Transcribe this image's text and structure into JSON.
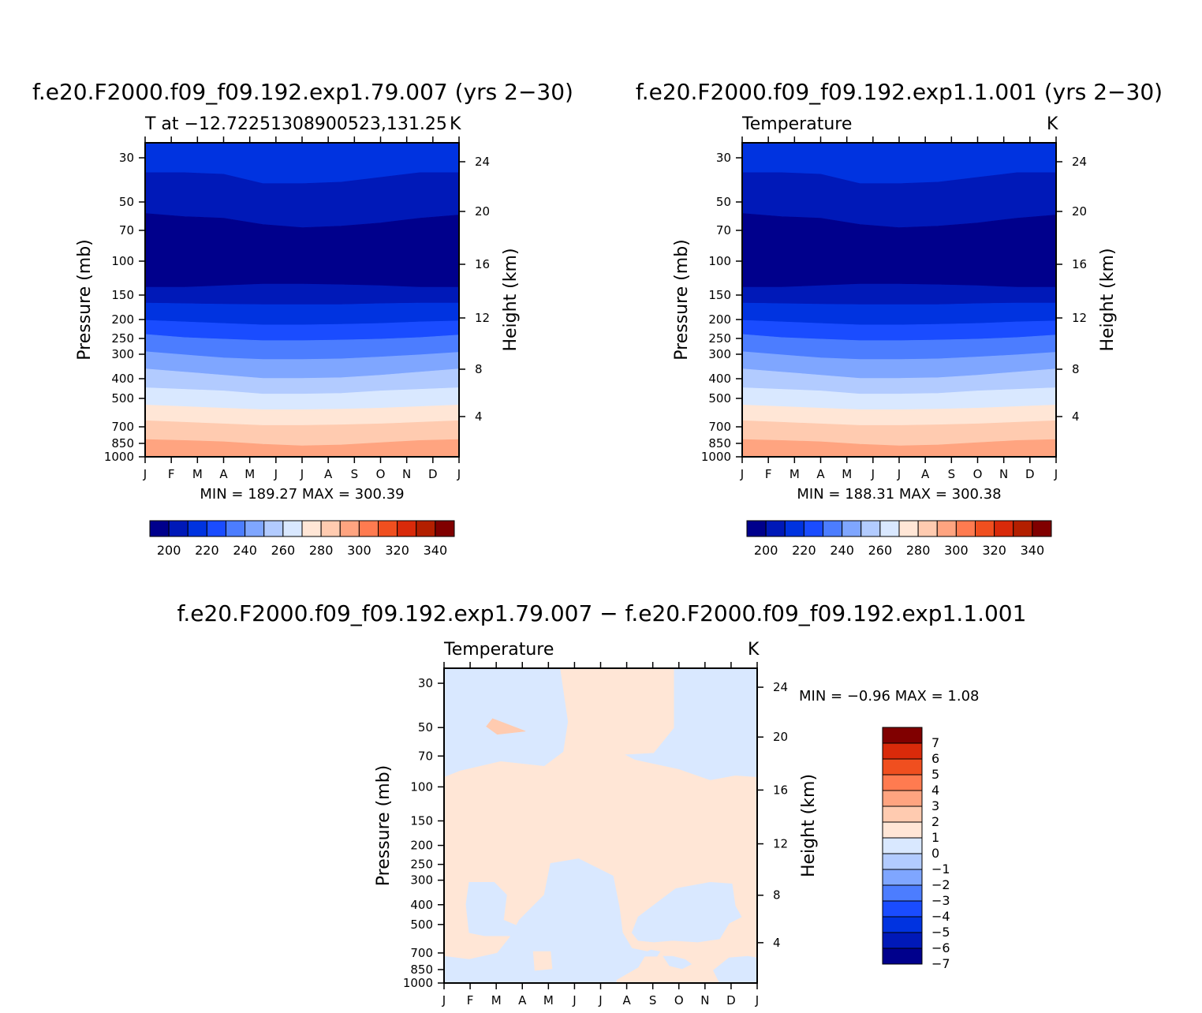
{
  "chart_data": [
    {
      "type": "heatmap",
      "id": "p1",
      "title": "f.e20.F2000.f09_f09.192.exp1.79.007 (yrs 2−30)",
      "subtitle_left": "T at −12.72251308900523,131.25",
      "subtitle_right": "K",
      "ylabel_left": "Pressure (mb)",
      "ylabel_right": "Height (km)",
      "x_ticks": [
        "J",
        "F",
        "M",
        "A",
        "M",
        "J",
        "J",
        "A",
        "S",
        "O",
        "N",
        "D",
        "J"
      ],
      "y_ticks": [
        "30",
        "50",
        "70",
        "100",
        "150",
        "200",
        "250",
        "300",
        "400",
        "500",
        "700",
        "850",
        "1000"
      ],
      "y_right_ticks": [
        "24",
        "20",
        "16",
        "12",
        "8",
        "4"
      ],
      "stats": "MIN = 189.27 MAX = 300.39",
      "min": 189.27,
      "max": 300.39,
      "colorbar_labels": [
        "200",
        "220",
        "240",
        "260",
        "280",
        "300",
        "320",
        "340"
      ]
    },
    {
      "type": "heatmap",
      "id": "p2",
      "title": "f.e20.F2000.f09_f09.192.exp1.1.001 (yrs 2−30)",
      "subtitle_left": "Temperature",
      "subtitle_right": "K",
      "ylabel_left": "Pressure (mb)",
      "ylabel_right": "Height (km)",
      "x_ticks": [
        "J",
        "F",
        "M",
        "A",
        "M",
        "J",
        "J",
        "A",
        "S",
        "O",
        "N",
        "D",
        "J"
      ],
      "y_ticks": [
        "30",
        "50",
        "70",
        "100",
        "150",
        "200",
        "250",
        "300",
        "400",
        "500",
        "700",
        "850",
        "1000"
      ],
      "y_right_ticks": [
        "24",
        "20",
        "16",
        "12",
        "8",
        "4"
      ],
      "stats": "MIN = 188.31 MAX = 300.38",
      "min": 188.31,
      "max": 300.38,
      "colorbar_labels": [
        "200",
        "220",
        "240",
        "260",
        "280",
        "300",
        "320",
        "340"
      ]
    },
    {
      "type": "heatmap",
      "id": "p3",
      "title": "f.e20.F2000.f09_f09.192.exp1.79.007 − f.e20.F2000.f09_f09.192.exp1.1.001",
      "subtitle_left": "Temperature",
      "subtitle_right": "K",
      "ylabel_left": "Pressure (mb)",
      "ylabel_right": "Height (km)",
      "x_ticks": [
        "J",
        "F",
        "M",
        "A",
        "M",
        "J",
        "J",
        "A",
        "S",
        "O",
        "N",
        "D",
        "J"
      ],
      "y_ticks": [
        "30",
        "50",
        "70",
        "100",
        "150",
        "200",
        "250",
        "300",
        "400",
        "500",
        "700",
        "850",
        "1000"
      ],
      "y_right_ticks": [
        "24",
        "20",
        "16",
        "12",
        "8",
        "4"
      ],
      "stats": "MIN =   −0.96 MAX =    1.08",
      "min": -0.96,
      "max": 1.08,
      "colorbar_labels": [
        "7",
        "6",
        "5",
        "4",
        "3",
        "2",
        "1",
        "0",
        "−1",
        "−2",
        "−3",
        "−4",
        "−5",
        "−6",
        "−7"
      ]
    }
  ],
  "colors": {
    "temperature_scale": [
      "#00008c",
      "#0019b8",
      "#0033e0",
      "#1a4cff",
      "#4c7dff",
      "#7fa6ff",
      "#b2cbff",
      "#d9e8ff",
      "#ffe6d6",
      "#ffcbb0",
      "#ffa480",
      "#ff7b50",
      "#f04f1f",
      "#d92a0a",
      "#b31f00",
      "#800000"
    ],
    "difference_scale": [
      "#00008c",
      "#0019b8",
      "#0033e0",
      "#1a4cff",
      "#4c7dff",
      "#7fa6ff",
      "#b2cbff",
      "#d9e8ff",
      "#ffe6d6",
      "#ffcbb0",
      "#ffa480",
      "#ff7b50",
      "#f04f1f",
      "#d92a0a",
      "#800000"
    ]
  }
}
